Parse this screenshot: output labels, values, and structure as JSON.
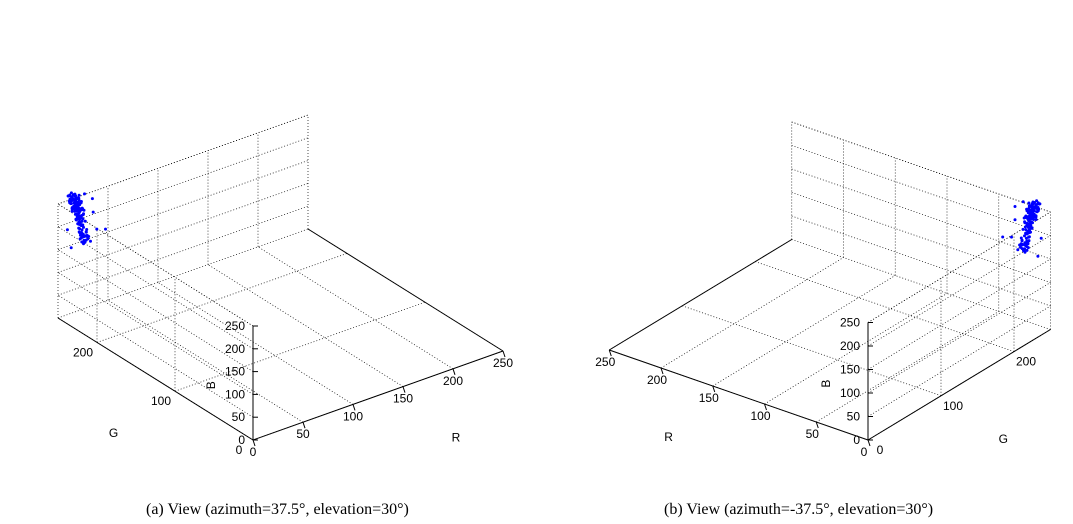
{
  "figure": {
    "captions": {
      "a": "(a) View (azimuth=37.5°, elevation=30°)",
      "b": "(b) View (azimuth=-37.5°, elevation=30°)"
    }
  },
  "chart_data": [
    {
      "type": "scatter",
      "view": {
        "azimuth": 37.5,
        "elevation": 30
      },
      "xlabel": "R",
      "ylabel": "G",
      "zlabel": "B",
      "xlim": [
        0,
        250
      ],
      "ylim": [
        0,
        250
      ],
      "zlim": [
        0,
        250
      ],
      "xticks": [
        0,
        50,
        100,
        150,
        200,
        250
      ],
      "yticks": [
        0,
        100,
        200
      ],
      "zticks": [
        0,
        50,
        100,
        150,
        200,
        250
      ],
      "grid": true,
      "marker_color": "#0000ff",
      "cluster": {
        "from": [
          20,
          240,
          165
        ],
        "to": [
          15,
          250,
          260
        ],
        "spread": 8,
        "count": 150,
        "noise": 12
      }
    },
    {
      "type": "scatter",
      "view": {
        "azimuth": -37.5,
        "elevation": 30
      },
      "xlabel": "R",
      "ylabel": "G",
      "zlabel": "B",
      "xlim": [
        0,
        250
      ],
      "ylim": [
        0,
        250
      ],
      "zlim": [
        0,
        250
      ],
      "xticks": [
        0,
        50,
        100,
        150,
        200,
        250
      ],
      "yticks": [
        0,
        100,
        200
      ],
      "zticks": [
        0,
        50,
        100,
        150,
        200,
        250
      ],
      "grid": true,
      "marker_color": "#0000ff",
      "cluster": {
        "from": [
          20,
          240,
          165
        ],
        "to": [
          15,
          250,
          260
        ],
        "spread": 8,
        "count": 150,
        "noise": 12
      }
    }
  ]
}
